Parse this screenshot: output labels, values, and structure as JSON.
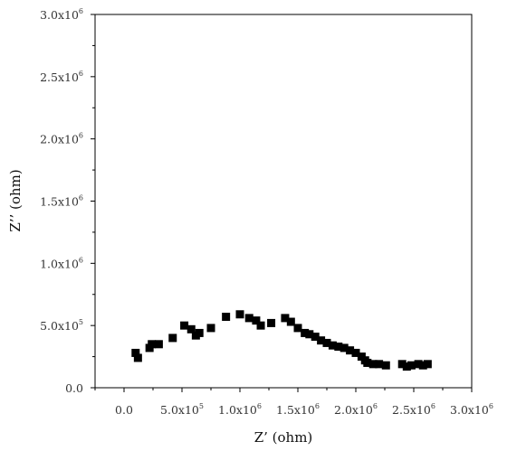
{
  "chart_data": {
    "type": "scatter",
    "title": "",
    "xlabel": "Z’ (ohm)",
    "ylabel": "Z’’ (ohm)",
    "xlim": [
      -250000,
      3000000
    ],
    "ylim": [
      0,
      3000000
    ],
    "grid": false,
    "marker": "square",
    "marker_color": "#000000",
    "x_ticks": [
      {
        "value": 0,
        "label": "0.0"
      },
      {
        "value": 500000,
        "mantissa": "5.0x10",
        "exp": "5"
      },
      {
        "value": 1000000,
        "mantissa": "1.0x10",
        "exp": "6"
      },
      {
        "value": 1500000,
        "mantissa": "1.5x10",
        "exp": "6"
      },
      {
        "value": 2000000,
        "mantissa": "2.0x10",
        "exp": "6"
      },
      {
        "value": 2500000,
        "mantissa": "2.5x10",
        "exp": "6"
      },
      {
        "value": 3000000,
        "mantissa": "3.0x10",
        "exp": "6"
      }
    ],
    "y_ticks": [
      {
        "value": 0,
        "label": "0.0"
      },
      {
        "value": 500000,
        "mantissa": "5.0x10",
        "exp": "5"
      },
      {
        "value": 1000000,
        "mantissa": "1.0x10",
        "exp": "6"
      },
      {
        "value": 1500000,
        "mantissa": "1.5x10",
        "exp": "6"
      },
      {
        "value": 2000000,
        "mantissa": "2.0x10",
        "exp": "6"
      },
      {
        "value": 2500000,
        "mantissa": "2.5x10",
        "exp": "6"
      },
      {
        "value": 3000000,
        "mantissa": "3.0x10",
        "exp": "6"
      }
    ],
    "series": [
      {
        "points": [
          [
            100000,
            280000
          ],
          [
            120000,
            240000
          ],
          [
            220000,
            320000
          ],
          [
            240000,
            350000
          ],
          [
            300000,
            350000
          ],
          [
            420000,
            400000
          ],
          [
            520000,
            500000
          ],
          [
            580000,
            470000
          ],
          [
            620000,
            420000
          ],
          [
            650000,
            440000
          ],
          [
            750000,
            480000
          ],
          [
            880000,
            570000
          ],
          [
            1000000,
            590000
          ],
          [
            1080000,
            560000
          ],
          [
            1140000,
            540000
          ],
          [
            1180000,
            500000
          ],
          [
            1270000,
            520000
          ],
          [
            1390000,
            560000
          ],
          [
            1440000,
            530000
          ],
          [
            1500000,
            480000
          ],
          [
            1560000,
            440000
          ],
          [
            1600000,
            430000
          ],
          [
            1650000,
            410000
          ],
          [
            1700000,
            380000
          ],
          [
            1750000,
            360000
          ],
          [
            1800000,
            340000
          ],
          [
            1850000,
            330000
          ],
          [
            1900000,
            320000
          ],
          [
            1950000,
            300000
          ],
          [
            2000000,
            280000
          ],
          [
            2050000,
            250000
          ],
          [
            2080000,
            220000
          ],
          [
            2100000,
            200000
          ],
          [
            2150000,
            190000
          ],
          [
            2200000,
            190000
          ],
          [
            2260000,
            180000
          ],
          [
            2400000,
            190000
          ],
          [
            2440000,
            170000
          ],
          [
            2480000,
            180000
          ],
          [
            2540000,
            190000
          ],
          [
            2580000,
            180000
          ],
          [
            2620000,
            190000
          ]
        ]
      }
    ]
  }
}
